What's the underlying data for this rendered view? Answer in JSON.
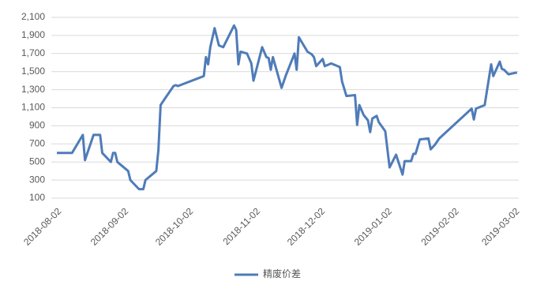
{
  "chart_data": {
    "type": "line",
    "x": [
      "2018-08-02",
      "2018-08-09",
      "2018-08-14",
      "2018-08-15",
      "2018-08-19",
      "2018-08-22",
      "2018-08-23",
      "2018-08-27",
      "2018-08-28",
      "2018-08-29",
      "2018-08-30",
      "2018-09-04",
      "2018-09-05",
      "2018-09-09",
      "2018-09-11",
      "2018-09-12",
      "2018-09-17",
      "2018-09-18",
      "2018-09-19",
      "2018-09-21",
      "2018-09-25",
      "2018-09-26",
      "2018-09-27",
      "2018-10-09",
      "2018-10-10",
      "2018-10-11",
      "2018-10-12",
      "2018-10-14",
      "2018-10-16",
      "2018-10-18",
      "2018-10-23",
      "2018-10-24",
      "2018-10-25",
      "2018-10-26",
      "2018-10-29",
      "2018-10-31",
      "2018-11-01",
      "2018-11-05",
      "2018-11-07",
      "2018-11-08",
      "2018-11-09",
      "2018-11-10",
      "2018-11-12",
      "2018-11-14",
      "2018-11-16",
      "2018-11-20",
      "2018-11-21",
      "2018-11-22",
      "2018-11-26",
      "2018-11-28",
      "2018-11-29",
      "2018-11-30",
      "2018-12-03",
      "2018-12-04",
      "2018-12-07",
      "2018-12-11",
      "2018-12-12",
      "2018-12-14",
      "2018-12-18",
      "2018-12-19",
      "2018-12-20",
      "2018-12-22",
      "2018-12-24",
      "2018-12-25",
      "2018-12-26",
      "2018-12-28",
      "2018-12-29",
      "2019-01-01",
      "2019-01-03",
      "2019-01-06",
      "2019-01-09",
      "2019-01-10",
      "2019-01-13",
      "2019-01-14",
      "2019-01-15",
      "2019-01-17",
      "2019-01-21",
      "2019-01-22",
      "2019-01-24",
      "2019-01-26",
      "2019-02-10",
      "2019-02-11",
      "2019-02-12",
      "2019-02-16",
      "2019-02-19",
      "2019-02-20",
      "2019-02-23",
      "2019-02-24",
      "2019-02-25",
      "2019-02-27",
      "2019-03-03"
    ],
    "series": [
      {
        "name": "精废价差",
        "color": "#4f7cb8",
        "values": [
          600,
          600,
          800,
          520,
          800,
          800,
          600,
          500,
          600,
          600,
          500,
          400,
          300,
          200,
          200,
          300,
          400,
          630,
          1130,
          1200,
          1340,
          1350,
          1340,
          1450,
          1660,
          1580,
          1770,
          1980,
          1790,
          1770,
          2010,
          1960,
          1580,
          1720,
          1700,
          1590,
          1400,
          1770,
          1660,
          1650,
          1520,
          1660,
          1490,
          1320,
          1460,
          1700,
          1520,
          1880,
          1720,
          1690,
          1660,
          1560,
          1640,
          1560,
          1590,
          1550,
          1390,
          1230,
          1240,
          910,
          1130,
          1020,
          960,
          830,
          980,
          1010,
          940,
          840,
          440,
          580,
          360,
          510,
          510,
          590,
          590,
          750,
          760,
          640,
          690,
          760,
          1090,
          970,
          1090,
          1130,
          1580,
          1450,
          1610,
          1530,
          1520,
          1470,
          1490
        ]
      }
    ],
    "xlim": [
      "2018-08-01",
      "2019-03-03"
    ],
    "xticks": [
      "2018-08-02",
      "2018-09-02",
      "2018-10-02",
      "2018-11-02",
      "2018-12-02",
      "2019-01-02",
      "2019-02-02",
      "2019-03-02"
    ],
    "ylim": [
      100,
      2100
    ],
    "yticks": [
      100,
      300,
      500,
      700,
      900,
      {
        "value": 1100,
        "label": "1,100"
      },
      {
        "value": 1300,
        "label": "1,300"
      },
      {
        "value": 1500,
        "label": "1,500"
      },
      {
        "value": 1700,
        "label": "1,700"
      },
      {
        "value": 1900,
        "label": "1,900"
      },
      {
        "value": 2100,
        "label": "2,100"
      }
    ],
    "grid": true,
    "legend": "bottom"
  }
}
